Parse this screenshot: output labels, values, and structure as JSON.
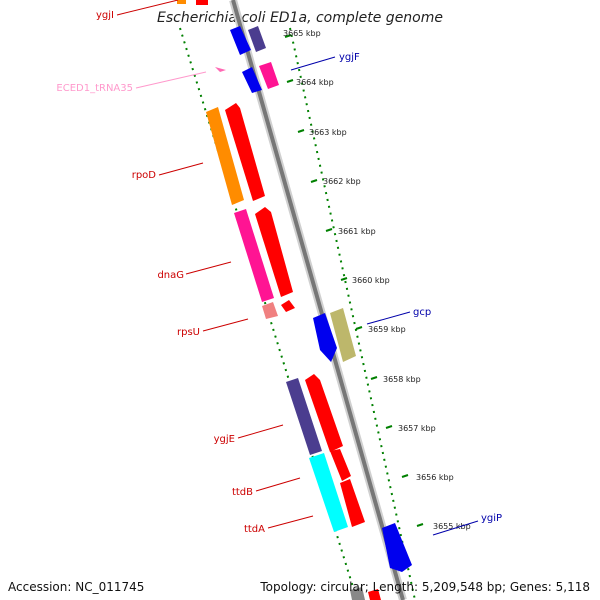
{
  "title": "Escherichia coli ED1a, complete genome",
  "accession_text": "Accession: NC_011745",
  "topology_text": "Topology: circular; Length: 5,209,548 bp; Genes: 5,118",
  "colors": {
    "red": "#ff0000",
    "blue": "#0000ee",
    "navy": "#4b3d8f",
    "orange": "#ff8c00",
    "magenta": "#ff1493",
    "pink": "#ff69b4",
    "salmon": "#f08080",
    "khaki": "#bdb76b",
    "cyan": "#00ffff",
    "track_gray": "#888888",
    "tick_green": "#008000"
  },
  "kbp_ticks": [
    "3665 kbp",
    "3664 kbp",
    "3663 kbp",
    "3662 kbp",
    "3661 kbp",
    "3660 kbp",
    "3659 kbp",
    "3658 kbp",
    "3657 kbp",
    "3656 kbp",
    "3655 kbp"
  ],
  "gene_labels": {
    "ygjI": "ygjI",
    "ygjF": "ygjF",
    "trna": "ECED1_tRNA35",
    "rpoD": "rpoD",
    "dnaG": "dnaG",
    "gcp": "gcp",
    "rpsU": "rpsU",
    "ygjE": "ygjE",
    "ttdB": "ttdB",
    "ttdA": "ttdA",
    "ygiP": "ygiP"
  }
}
